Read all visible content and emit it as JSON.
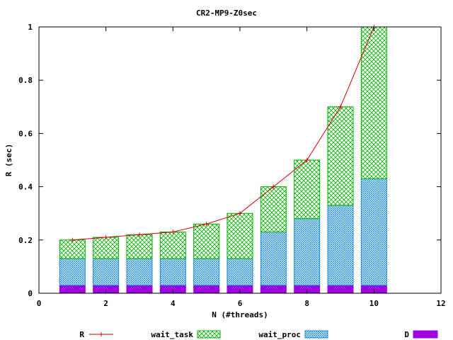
{
  "chart_data": {
    "type": "bar",
    "title": "CR2-MP9-Z0sec",
    "xlabel": "N (#threads)",
    "ylabel": "R (sec)",
    "xlim": [
      0,
      12
    ],
    "ylim": [
      0,
      1
    ],
    "x_ticks": [
      "0",
      "2",
      "4",
      "6",
      "8",
      "10",
      "12"
    ],
    "y_ticks": [
      "0",
      "0.2",
      "0.4",
      "0.6",
      "0.8",
      "1"
    ],
    "grid": false,
    "legend_position": "bottom",
    "stacked": true,
    "x": [
      1,
      2,
      3,
      4,
      5,
      6,
      7,
      8,
      9,
      10
    ],
    "series": [
      {
        "name": "R",
        "kind": "line",
        "color": "#d40000",
        "values": [
          0.2,
          0.21,
          0.22,
          0.23,
          0.26,
          0.3,
          0.4,
          0.5,
          0.7,
          1.0
        ]
      },
      {
        "name": "wait_task",
        "kind": "bar",
        "color": "#00b000",
        "values": [
          0.07,
          0.08,
          0.09,
          0.1,
          0.13,
          0.17,
          0.17,
          0.22,
          0.37,
          0.57
        ]
      },
      {
        "name": "wait_proc",
        "kind": "bar",
        "color": "#1a8ad4",
        "values": [
          0.1,
          0.1,
          0.1,
          0.1,
          0.1,
          0.1,
          0.2,
          0.25,
          0.3,
          0.4
        ]
      },
      {
        "name": "D",
        "kind": "bar",
        "color": "#a000e0",
        "values": [
          0.03,
          0.03,
          0.03,
          0.03,
          0.03,
          0.03,
          0.03,
          0.03,
          0.03,
          0.03
        ]
      }
    ]
  }
}
